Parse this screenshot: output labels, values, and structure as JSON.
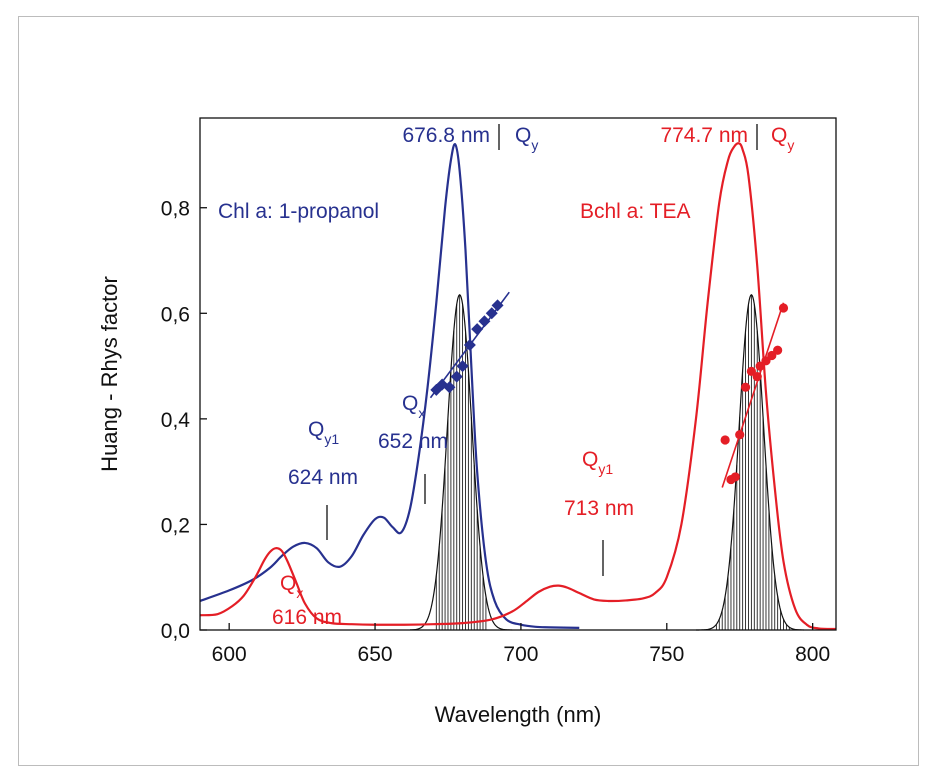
{
  "chart_data": {
    "type": "line",
    "xlabel": "Wavelength (nm)",
    "ylabel": "Huang - Rhys factor",
    "xlim": [
      590,
      808
    ],
    "ylim": [
      0,
      0.97
    ],
    "grid": false,
    "x_ticks": [
      {
        "value": 600,
        "label": "600"
      },
      {
        "value": 650,
        "label": "650"
      },
      {
        "value": 700,
        "label": "700"
      },
      {
        "value": 750,
        "label": "750"
      },
      {
        "value": 800,
        "label": "800"
      }
    ],
    "y_ticks": [
      {
        "value": 0.0,
        "label": "0,0"
      },
      {
        "value": 0.2,
        "label": "0,2"
      },
      {
        "value": 0.4,
        "label": "0,4"
      },
      {
        "value": 0.6,
        "label": "0,6"
      },
      {
        "value": 0.8,
        "label": "0,8"
      }
    ],
    "colors": {
      "chl": "#27318f",
      "bchl": "#e41e26",
      "gauss": "#111111"
    },
    "series": [
      {
        "label": "Chl a: 1-propanol",
        "color": "#27318f",
        "x": [
          590,
          600,
          608,
          614,
          618,
          622,
          626,
          630,
          634,
          638,
          642,
          646,
          650,
          653,
          656,
          659,
          662,
          665,
          668,
          671,
          674,
          676,
          677.5,
          679,
          681,
          683,
          685,
          688,
          691,
          695,
          700,
          705,
          710,
          720
        ],
        "y": [
          0.055,
          0.075,
          0.095,
          0.118,
          0.14,
          0.158,
          0.165,
          0.155,
          0.128,
          0.12,
          0.14,
          0.18,
          0.21,
          0.213,
          0.195,
          0.185,
          0.23,
          0.33,
          0.46,
          0.62,
          0.8,
          0.89,
          0.92,
          0.87,
          0.72,
          0.5,
          0.3,
          0.13,
          0.055,
          0.02,
          0.01,
          0.006,
          0.005,
          0.004
        ]
      },
      {
        "label": "Bchl a: TEA",
        "color": "#e41e26",
        "x": [
          590,
          596,
          601,
          605,
          609,
          612,
          614,
          616,
          618,
          620,
          623,
          626,
          630,
          635,
          642,
          650,
          660,
          670,
          680,
          690,
          697,
          702,
          706,
          710,
          713,
          716,
          720,
          725,
          730,
          736,
          742,
          746,
          750,
          755,
          760,
          764,
          768,
          771,
          773,
          774.7,
          776,
          778,
          781,
          784,
          787,
          790,
          794,
          798,
          802,
          808
        ],
        "y": [
          0.028,
          0.03,
          0.045,
          0.065,
          0.1,
          0.132,
          0.148,
          0.155,
          0.15,
          0.13,
          0.09,
          0.05,
          0.022,
          0.013,
          0.011,
          0.01,
          0.01,
          0.011,
          0.013,
          0.02,
          0.035,
          0.055,
          0.072,
          0.082,
          0.084,
          0.08,
          0.07,
          0.058,
          0.055,
          0.056,
          0.06,
          0.07,
          0.1,
          0.2,
          0.4,
          0.62,
          0.81,
          0.89,
          0.915,
          0.922,
          0.91,
          0.86,
          0.69,
          0.45,
          0.27,
          0.13,
          0.04,
          0.01,
          0.003,
          0.002
        ]
      }
    ],
    "gaussians": [
      {
        "center": 679,
        "sigma": 4.2,
        "amplitude": 0.635,
        "from": 662,
        "to": 697,
        "hatch_from": 671,
        "hatch_to": 688
      },
      {
        "center": 779,
        "sigma": 4.2,
        "amplitude": 0.635,
        "from": 760,
        "to": 797,
        "hatch_from": 767,
        "hatch_to": 792
      }
    ],
    "markers": [
      {
        "label": "Chl a: 1-propanol markers",
        "shape": "diamond",
        "color": "#27318f",
        "x": [
          671,
          673,
          675.5,
          678,
          680,
          682.5,
          685,
          687.5,
          690,
          692
        ],
        "y": [
          0.455,
          0.465,
          0.46,
          0.48,
          0.5,
          0.54,
          0.57,
          0.585,
          0.6,
          0.615
        ],
        "fit": {
          "x": [
            669,
            696
          ],
          "y": [
            0.44,
            0.64
          ]
        }
      },
      {
        "label": "Bchl a: TEA markers",
        "shape": "circle",
        "color": "#e41e26",
        "x": [
          770,
          772,
          773.5,
          775,
          777,
          779,
          781,
          782,
          784,
          786,
          788,
          790
        ],
        "y": [
          0.36,
          0.285,
          0.29,
          0.37,
          0.46,
          0.49,
          0.48,
          0.5,
          0.51,
          0.52,
          0.53,
          0.61
        ],
        "fit": {
          "x": [
            769,
            790
          ],
          "y": [
            0.27,
            0.62
          ]
        }
      }
    ],
    "annotations": [
      {
        "text": "Chl a: 1-propanol",
        "color": "#27318f"
      },
      {
        "text": "Bchl a: TEA",
        "color": "#e41e26"
      },
      {
        "text": "676.8 nm",
        "color": "#27318f"
      },
      {
        "text": "Q",
        "sub": "y",
        "color": "#27318f"
      },
      {
        "text": "774.7 nm",
        "color": "#e41e26"
      },
      {
        "text": "Q",
        "sub": "y",
        "color": "#e41e26"
      },
      {
        "text": "Q",
        "sub": "x",
        "color": "#27318f"
      },
      {
        "text": "652 nm",
        "color": "#27318f"
      },
      {
        "text": "Q",
        "sub": "y1",
        "color": "#27318f"
      },
      {
        "text": "624 nm",
        "color": "#27318f"
      },
      {
        "text": "Q",
        "sub": "y1",
        "color": "#e41e26"
      },
      {
        "text": "713 nm",
        "color": "#e41e26"
      },
      {
        "text": "Q",
        "sub": "x",
        "color": "#e41e26"
      },
      {
        "text": "616 nm",
        "color": "#e41e26"
      }
    ]
  }
}
